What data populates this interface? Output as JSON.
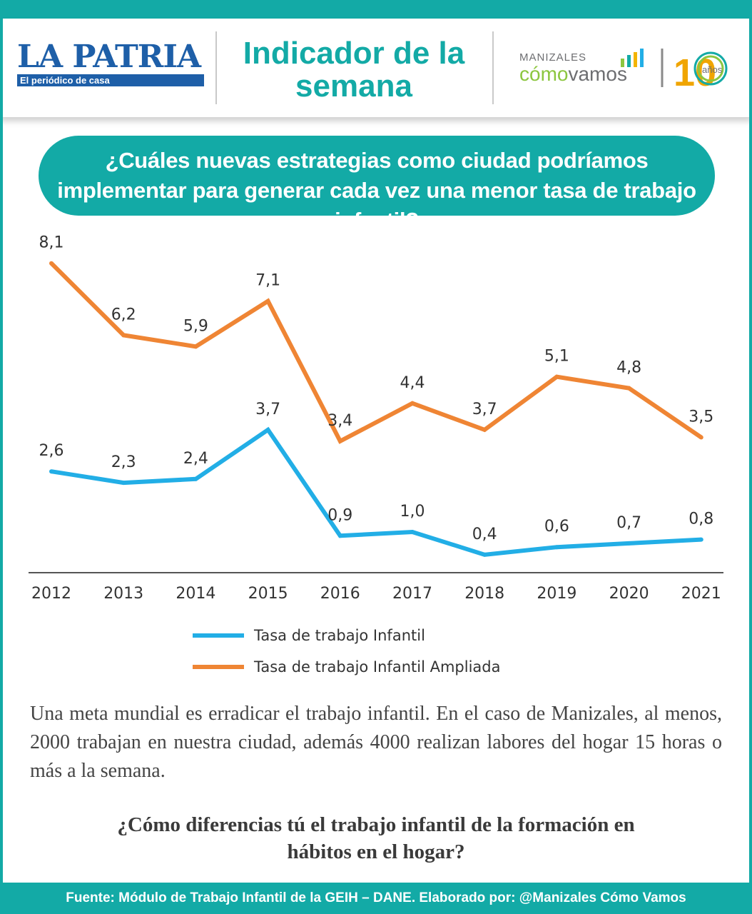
{
  "header": {
    "brand_name": "LA PATRIA",
    "brand_tagline": "El periódico de casa",
    "indicator_title": "Indicador de la semana",
    "partner_city": "MANIZALES",
    "partner_name_accent": "cómo",
    "partner_name_rest": "vamos",
    "anniversary_number": "10",
    "anniversary_label": "años"
  },
  "question": "¿Cuáles nuevas estrategias como ciudad podríamos implementar para generar cada vez una menor tasa de trabajo infantil?",
  "colors": {
    "teal": "#13aaa6",
    "blue_series": "#22aee6",
    "orange_series": "#ef8534",
    "axis": "#555555"
  },
  "chart_data": {
    "type": "line",
    "x": [
      "2012",
      "2013",
      "2014",
      "2015",
      "2016",
      "2017",
      "2018",
      "2019",
      "2020",
      "2021"
    ],
    "ylim": [
      0,
      9
    ],
    "grid": false,
    "legend_position": "bottom",
    "series": [
      {
        "name": "Tasa de trabajo Infantil",
        "color": "#22aee6",
        "values": [
          2.6,
          2.3,
          2.4,
          3.7,
          0.9,
          1.0,
          0.4,
          0.6,
          0.7,
          0.8
        ],
        "labels": [
          "2,6",
          "2,3",
          "2,4",
          "3,7",
          "0,9",
          "1,0",
          "0,4",
          "0,6",
          "0,7",
          "0,8"
        ]
      },
      {
        "name": "Tasa de trabajo Infantil Ampliada",
        "color": "#ef8534",
        "values": [
          8.1,
          6.2,
          5.9,
          7.1,
          3.4,
          4.4,
          3.7,
          5.1,
          4.8,
          3.5
        ],
        "labels": [
          "8,1",
          "6,2",
          "5,9",
          "7,1",
          "3,4",
          "4,4",
          "3,7",
          "5,1",
          "4,8",
          "3,5"
        ]
      }
    ]
  },
  "body_text": "Una meta mundial es erradicar el trabajo infantil. En el caso de Manizales, al menos, 2000 trabajan en nuestra ciudad, además 4000 realizan labores del hogar 15 horas o más a la semana.",
  "closing_question": "¿Cómo diferencias tú el trabajo infantil de la formación en hábitos en el hogar?",
  "footer": "Fuente: Módulo de Trabajo Infantil de la GEIH – DANE. Elaborado por: @Manizales Cómo Vamos"
}
